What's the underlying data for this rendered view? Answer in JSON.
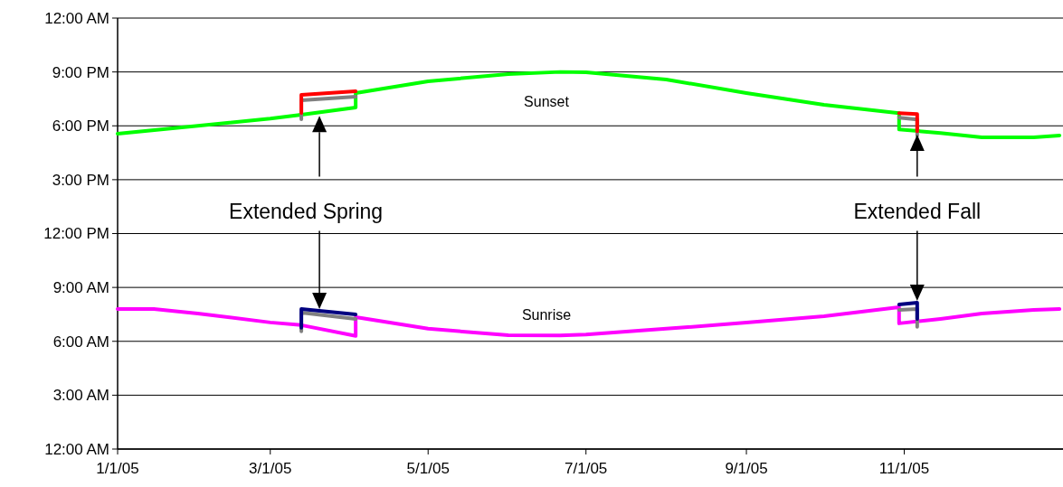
{
  "chart_data": {
    "type": "line",
    "xlim": [
      "2005-01-01",
      "2006-01-01"
    ],
    "xticks": [
      {
        "value": "2005-01-01",
        "label": "1/1/05"
      },
      {
        "value": "2005-03-01",
        "label": "3/1/05"
      },
      {
        "value": "2005-05-01",
        "label": "5/1/05"
      },
      {
        "value": "2005-07-01",
        "label": "7/1/05"
      },
      {
        "value": "2005-09-01",
        "label": "9/1/05"
      },
      {
        "value": "2005-11-01",
        "label": "11/1/05"
      }
    ],
    "ylim": [
      0,
      24
    ],
    "yticks": [
      {
        "value": 0,
        "label": "12:00 AM"
      },
      {
        "value": 3,
        "label": "3:00 AM"
      },
      {
        "value": 6,
        "label": "6:00 AM"
      },
      {
        "value": 9,
        "label": "9:00 AM"
      },
      {
        "value": 12,
        "label": "12:00 PM"
      },
      {
        "value": 15,
        "label": "3:00 PM"
      },
      {
        "value": 18,
        "label": "6:00 PM"
      },
      {
        "value": 21,
        "label": "9:00 PM"
      },
      {
        "value": 24,
        "label": "12:00 AM"
      }
    ],
    "grid": "y",
    "marker": "none",
    "line_style": "solid",
    "series": [
      {
        "name": "Sunset",
        "color": "#00ff00",
        "x": [
          "2005-01-01",
          "2005-02-01",
          "2005-03-01",
          "2005-03-13",
          "2005-04-03",
          "2005-04-03",
          "2005-05-01",
          "2005-06-01",
          "2005-06-21",
          "2005-07-01",
          "2005-08-01",
          "2005-09-01",
          "2005-10-01",
          "2005-10-30",
          "2005-10-30",
          "2005-11-15",
          "2005-12-01",
          "2005-12-21",
          "2005-12-31"
        ],
        "values": [
          17.56,
          18.0,
          18.4,
          18.62,
          19.02,
          19.82,
          20.48,
          20.88,
          21.0,
          20.98,
          20.58,
          19.82,
          19.17,
          18.7,
          17.8,
          17.6,
          17.36,
          17.36,
          17.46
        ]
      },
      {
        "color": "#808080",
        "x": [
          "2005-03-13",
          "2005-03-13",
          "2005-04-03"
        ],
        "values": [
          18.36,
          19.42,
          19.62
        ]
      },
      {
        "color": "#ff0000",
        "x": [
          "2005-03-13",
          "2005-03-13",
          "2005-04-03"
        ],
        "values": [
          18.72,
          19.72,
          19.92
        ]
      },
      {
        "color": "#808080",
        "x": [
          "2005-10-30",
          "2005-11-06",
          "2005-11-06"
        ],
        "values": [
          18.45,
          18.35,
          17.45
        ]
      },
      {
        "color": "#ff0000",
        "x": [
          "2005-10-30",
          "2005-11-06",
          "2005-11-06"
        ],
        "values": [
          18.7,
          18.65,
          17.7
        ]
      },
      {
        "name": "Sunrise",
        "color": "#ff00ff",
        "x": [
          "2005-01-01",
          "2005-01-15",
          "2005-02-01",
          "2005-03-01",
          "2005-03-13",
          "2005-04-03",
          "2005-04-03",
          "2005-05-01",
          "2005-06-01",
          "2005-06-21",
          "2005-07-01",
          "2005-08-01",
          "2005-09-01",
          "2005-10-01",
          "2005-10-30",
          "2005-10-30",
          "2005-11-15",
          "2005-12-01",
          "2005-12-21",
          "2005-12-31"
        ],
        "values": [
          7.8,
          7.8,
          7.55,
          7.05,
          6.9,
          6.3,
          7.35,
          6.7,
          6.34,
          6.33,
          6.38,
          6.7,
          7.04,
          7.4,
          7.9,
          7.0,
          7.25,
          7.55,
          7.75,
          7.8
        ]
      },
      {
        "color": "#808080",
        "x": [
          "2005-03-13",
          "2005-03-13",
          "2005-04-03"
        ],
        "values": [
          6.55,
          7.6,
          7.25
        ]
      },
      {
        "color": "#000080",
        "x": [
          "2005-03-13",
          "2005-03-13",
          "2005-04-03"
        ],
        "values": [
          6.75,
          7.8,
          7.5
        ]
      },
      {
        "color": "#808080",
        "x": [
          "2005-10-30",
          "2005-11-06",
          "2005-11-06"
        ],
        "values": [
          7.75,
          7.8,
          6.8
        ]
      },
      {
        "color": "#000080",
        "x": [
          "2005-10-30",
          "2005-11-06",
          "2005-11-06"
        ],
        "values": [
          8.05,
          8.15,
          7.25
        ]
      }
    ],
    "annotations": [
      "Extended Spring",
      "Extended Fall"
    ]
  }
}
